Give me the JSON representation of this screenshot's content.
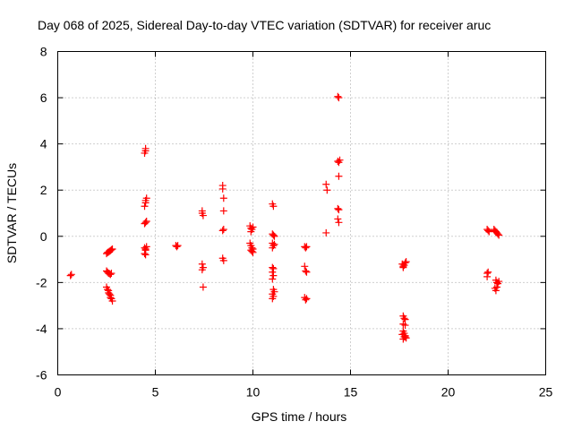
{
  "chart_data": {
    "type": "scatter",
    "title": "Day 068 of 2025, Sidereal Day-to-day VTEC variation (SDTVAR) for receiver aruc",
    "xlabel": "GPS time / hours",
    "ylabel": "SDTVAR / TECUs",
    "xlim": [
      0,
      25
    ],
    "ylim": [
      -6,
      8
    ],
    "xticks": [
      0,
      5,
      10,
      15,
      20,
      25
    ],
    "yticks": [
      -6,
      -4,
      -2,
      0,
      2,
      4,
      6,
      8
    ],
    "xtick_labels": [
      "0",
      "5",
      "10",
      "15",
      "20",
      "25"
    ],
    "ytick_labels": [
      "-6",
      "-4",
      "-2",
      "0",
      "2",
      "4",
      "6",
      "8"
    ],
    "grid": true,
    "marker": "+",
    "color": "#ff0000",
    "series": [
      {
        "name": "SDTVAR",
        "points": [
          [
            0.65,
            -1.7
          ],
          [
            0.7,
            -1.65
          ],
          [
            2.5,
            -0.75
          ],
          [
            2.55,
            -0.7
          ],
          [
            2.6,
            -0.68
          ],
          [
            2.65,
            -0.65
          ],
          [
            2.7,
            -0.62
          ],
          [
            2.75,
            -0.58
          ],
          [
            2.8,
            -0.55
          ],
          [
            2.5,
            -1.5
          ],
          [
            2.55,
            -1.55
          ],
          [
            2.6,
            -1.6
          ],
          [
            2.65,
            -1.62
          ],
          [
            2.7,
            -1.65
          ],
          [
            2.75,
            -1.6
          ],
          [
            2.5,
            -2.2
          ],
          [
            2.55,
            -2.3
          ],
          [
            2.6,
            -2.35
          ],
          [
            2.6,
            -2.45
          ],
          [
            2.65,
            -2.5
          ],
          [
            2.7,
            -2.55
          ],
          [
            2.7,
            -2.65
          ],
          [
            2.75,
            -2.7
          ],
          [
            2.8,
            -2.8
          ],
          [
            4.45,
            3.6
          ],
          [
            4.5,
            3.7
          ],
          [
            4.5,
            3.8
          ],
          [
            4.45,
            1.3
          ],
          [
            4.5,
            1.45
          ],
          [
            4.5,
            1.55
          ],
          [
            4.55,
            1.65
          ],
          [
            4.45,
            0.55
          ],
          [
            4.5,
            0.6
          ],
          [
            4.55,
            0.65
          ],
          [
            4.45,
            -0.5
          ],
          [
            4.5,
            -0.55
          ],
          [
            4.55,
            -0.45
          ],
          [
            4.5,
            -0.6
          ],
          [
            4.45,
            -0.75
          ],
          [
            4.5,
            -0.8
          ],
          [
            6.05,
            -0.4
          ],
          [
            6.1,
            -0.45
          ],
          [
            6.15,
            -0.4
          ],
          [
            7.4,
            1.0
          ],
          [
            7.45,
            0.9
          ],
          [
            7.4,
            1.1
          ],
          [
            7.4,
            -1.2
          ],
          [
            7.45,
            -1.35
          ],
          [
            7.4,
            -1.45
          ],
          [
            7.45,
            -2.2
          ],
          [
            8.45,
            2.05
          ],
          [
            8.45,
            2.2
          ],
          [
            8.5,
            1.65
          ],
          [
            8.5,
            1.1
          ],
          [
            8.45,
            0.25
          ],
          [
            8.5,
            0.3
          ],
          [
            8.45,
            -0.95
          ],
          [
            8.5,
            -1.05
          ],
          [
            9.85,
            0.45
          ],
          [
            9.9,
            0.35
          ],
          [
            9.95,
            0.3
          ],
          [
            10.0,
            0.4
          ],
          [
            9.9,
            0.2
          ],
          [
            9.85,
            -0.3
          ],
          [
            9.9,
            -0.4
          ],
          [
            9.95,
            -0.5
          ],
          [
            10.0,
            -0.55
          ],
          [
            9.9,
            -0.6
          ],
          [
            10.0,
            -0.7
          ],
          [
            9.95,
            -0.65
          ],
          [
            11.0,
            1.4
          ],
          [
            11.05,
            1.3
          ],
          [
            11.0,
            0.1
          ],
          [
            11.05,
            0.05
          ],
          [
            11.1,
            0.0
          ],
          [
            11.0,
            -0.3
          ],
          [
            11.05,
            -0.4
          ],
          [
            11.1,
            -0.35
          ],
          [
            11.0,
            -0.5
          ],
          [
            11.0,
            -1.35
          ],
          [
            11.05,
            -1.4
          ],
          [
            11.0,
            -1.55
          ],
          [
            11.05,
            -1.7
          ],
          [
            11.0,
            -1.85
          ],
          [
            11.05,
            -2.3
          ],
          [
            11.1,
            -2.4
          ],
          [
            11.0,
            -2.5
          ],
          [
            11.05,
            -2.6
          ],
          [
            11.0,
            -2.7
          ],
          [
            12.65,
            -0.45
          ],
          [
            12.7,
            -0.5
          ],
          [
            12.75,
            -0.45
          ],
          [
            12.65,
            -1.3
          ],
          [
            12.7,
            -1.5
          ],
          [
            12.75,
            -1.55
          ],
          [
            12.65,
            -2.65
          ],
          [
            12.7,
            -2.75
          ],
          [
            12.75,
            -2.7
          ],
          [
            13.75,
            2.25
          ],
          [
            13.8,
            2.0
          ],
          [
            13.75,
            0.15
          ],
          [
            14.35,
            6.05
          ],
          [
            14.4,
            6.0
          ],
          [
            14.35,
            3.25
          ],
          [
            14.4,
            3.2
          ],
          [
            14.45,
            3.3
          ],
          [
            14.4,
            2.6
          ],
          [
            14.35,
            1.2
          ],
          [
            14.4,
            1.15
          ],
          [
            14.35,
            0.75
          ],
          [
            14.4,
            0.6
          ],
          [
            17.65,
            -1.2
          ],
          [
            17.7,
            -1.3
          ],
          [
            17.75,
            -1.25
          ],
          [
            17.8,
            -1.15
          ],
          [
            17.85,
            -1.1
          ],
          [
            17.7,
            -1.35
          ],
          [
            17.7,
            -3.45
          ],
          [
            17.75,
            -3.55
          ],
          [
            17.8,
            -3.6
          ],
          [
            17.7,
            -3.8
          ],
          [
            17.8,
            -3.85
          ],
          [
            17.7,
            -4.1
          ],
          [
            17.75,
            -4.2
          ],
          [
            17.65,
            -4.25
          ],
          [
            17.8,
            -4.3
          ],
          [
            17.75,
            -4.35
          ],
          [
            17.85,
            -4.4
          ],
          [
            17.7,
            -4.45
          ],
          [
            17.8,
            -4.35
          ],
          [
            22.0,
            0.3
          ],
          [
            22.05,
            0.25
          ],
          [
            22.1,
            0.2
          ],
          [
            22.0,
            -1.6
          ],
          [
            22.05,
            -1.55
          ],
          [
            22.0,
            -1.75
          ],
          [
            22.35,
            0.3
          ],
          [
            22.4,
            0.25
          ],
          [
            22.45,
            0.2
          ],
          [
            22.5,
            0.15
          ],
          [
            22.55,
            0.1
          ],
          [
            22.6,
            0.05
          ],
          [
            22.45,
            -1.9
          ],
          [
            22.5,
            -2.0
          ],
          [
            22.55,
            -2.05
          ],
          [
            22.6,
            -1.95
          ],
          [
            22.4,
            -2.25
          ],
          [
            22.45,
            -2.35
          ],
          [
            22.5,
            -2.2
          ]
        ]
      }
    ]
  }
}
